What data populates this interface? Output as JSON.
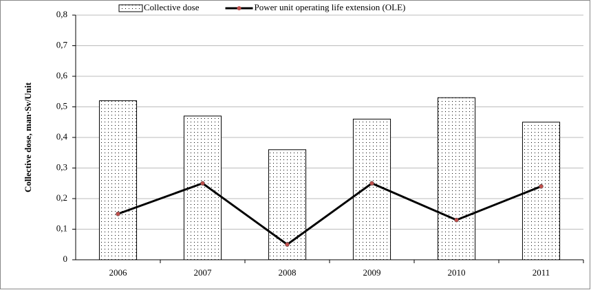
{
  "chart_data": {
    "type": "bar",
    "y_label": "Collective dose, man·Sv/Unit",
    "categories": [
      "2006",
      "2007",
      "2008",
      "2009",
      "2010",
      "2011"
    ],
    "series": [
      {
        "name": "Collective dose",
        "type": "bar",
        "color": "#000000",
        "values": [
          0.52,
          0.47,
          0.36,
          0.46,
          0.53,
          0.45
        ]
      },
      {
        "name": "Power unit operating life extension (OLE)",
        "type": "line",
        "color": "#000000",
        "marker_color": "#c0504d",
        "values": [
          0.15,
          0.25,
          0.05,
          0.25,
          0.13,
          0.24
        ]
      }
    ],
    "ylim": [
      0,
      0.8
    ],
    "yticks": [
      0,
      {
        "value": 0.1,
        "label": "0,1"
      },
      {
        "value": 0.2,
        "label": "0,2"
      },
      {
        "value": 0.3,
        "label": "0,3"
      },
      {
        "value": 0.4,
        "label": "0,4"
      },
      {
        "value": 0.5,
        "label": "0,5"
      },
      {
        "value": 0.6,
        "label": "0,6"
      },
      {
        "value": 0.7,
        "label": "0,7"
      },
      {
        "value": 0.8,
        "label": "0,8"
      }
    ],
    "grid": true,
    "legend": "top"
  }
}
